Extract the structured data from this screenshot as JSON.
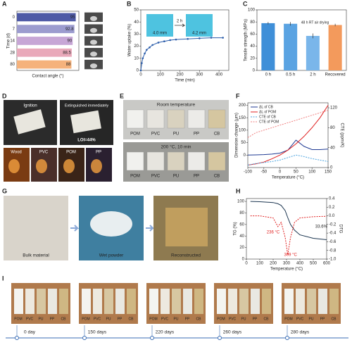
{
  "panels": [
    "A",
    "B",
    "C",
    "D",
    "E",
    "F",
    "G",
    "H",
    "I"
  ],
  "chart_data": [
    {
      "type": "barh",
      "categories": [
        "0",
        "7",
        "14",
        "28",
        "80"
      ],
      "values": [
        95,
        92.8,
        90,
        88.5,
        88
      ],
      "colors": [
        "#4e5aa6",
        "#9c9ccf",
        "#c7a6d6",
        "#e9a9ba",
        "#f5b27c"
      ],
      "xlim": [
        0,
        100
      ],
      "xlabel": "Contact angle (°)",
      "ylabel": "Time (d)"
    },
    {
      "type": "line",
      "x": [
        0,
        5,
        10,
        20,
        30,
        45,
        60,
        90,
        120,
        150,
        180,
        240,
        300,
        360,
        420
      ],
      "series": [
        {
          "color": "#2a5caa",
          "markers": true,
          "values": [
            0,
            6,
            10,
            14,
            17,
            19,
            21,
            23,
            24,
            25,
            25.5,
            26,
            26.5,
            27,
            27
          ]
        }
      ],
      "xlim": [
        0,
        450
      ],
      "xticks": [
        0,
        100,
        200,
        300,
        400
      ],
      "ylim": [
        0,
        50
      ],
      "yticks": [
        0,
        10,
        20,
        30,
        40,
        50
      ],
      "xlabel": "Time (min)",
      "ylabel": "Water uptake (%)",
      "annotations": [
        "4.0 mm",
        "2 h",
        "4.2 mm"
      ]
    },
    {
      "type": "bar",
      "categories": [
        "0 h",
        "0.5 h",
        "2 h",
        "Recovered"
      ],
      "values": [
        78,
        77,
        57,
        75
      ],
      "errors": [
        2,
        3,
        4,
        2
      ],
      "colors": [
        "#3f8fd8",
        "#5aa3e2",
        "#7ab6ea",
        "#f39a5c"
      ],
      "ylim": [
        0,
        100
      ],
      "yticks": [
        0,
        20,
        40,
        60,
        80,
        100
      ],
      "ylabel": "Tensile strength (MPa)",
      "annotations": [
        "48 h RT air drying"
      ]
    },
    {
      "type": "line",
      "x": [
        -100,
        -75,
        -50,
        -25,
        0,
        25,
        50,
        75,
        100,
        125,
        150
      ],
      "series": [
        {
          "name": "ΔL of CB",
          "color": "#1f3a93",
          "values": [
            0,
            1,
            2,
            4,
            8,
            20,
            60,
            35,
            22,
            22,
            24
          ]
        },
        {
          "name": "ΔL of POM",
          "color": "#e02020",
          "values": [
            -40,
            -35,
            -28,
            -15,
            0,
            20,
            45,
            75,
            110,
            150,
            200
          ]
        },
        {
          "name": "CTE of CB",
          "color": "#4aa3df",
          "dashed": true,
          "axis": "y2",
          "values": [
            5,
            8,
            10,
            12,
            15,
            20,
            25,
            22,
            18,
            15,
            12
          ]
        },
        {
          "name": "CTE of POM",
          "color": "#f08080",
          "dashed": true,
          "axis": "y2",
          "values": [
            60,
            70,
            75,
            80,
            85,
            90,
            95,
            100,
            105,
            110,
            115
          ]
        }
      ],
      "xlim": [
        -100,
        150
      ],
      "xticks": [
        -100,
        -50,
        0,
        50,
        100,
        150
      ],
      "ylim": [
        -50,
        210
      ],
      "yticks": [
        0,
        50,
        100,
        150,
        200
      ],
      "y2lim": [
        0,
        130
      ],
      "y2ticks": [
        0,
        40,
        80,
        120
      ],
      "xlabel": "Temperature (°C)",
      "ylabel": "Dimension change (μm)",
      "y2label": "CTE (ppm/K)",
      "legend": "upper left"
    },
    {
      "type": "line",
      "x": [
        30,
        100,
        200,
        236,
        260,
        290,
        309,
        330,
        360,
        400,
        500,
        600
      ],
      "series": [
        {
          "color": "#1b3550",
          "values": [
            100,
            99.5,
            98,
            96,
            93,
            84,
            72,
            60,
            50,
            42,
            36,
            33.6
          ]
        },
        {
          "color": "#e02020",
          "dashed": true,
          "axis": "y2",
          "values": [
            0,
            0,
            -0.05,
            -0.25,
            -0.15,
            -0.5,
            -0.9,
            -0.5,
            -0.15,
            -0.05,
            -0.02,
            -0.01
          ]
        }
      ],
      "xlim": [
        0,
        600
      ],
      "xticks": [
        0,
        100,
        200,
        300,
        400,
        500,
        600
      ],
      "ylim": [
        0,
        105
      ],
      "yticks": [
        0,
        20,
        40,
        60,
        80,
        100
      ],
      "y2lim": [
        -1.0,
        0.4
      ],
      "y2ticks": [
        {
          "value": -1.0,
          "label": "-1.0"
        },
        {
          "value": -0.8,
          "label": "-0.8"
        },
        {
          "value": -0.6,
          "label": "-0.6"
        },
        {
          "value": -0.4,
          "label": "-0.4"
        },
        {
          "value": -0.2,
          "label": "-0.2"
        },
        {
          "value": 0,
          "label": "0.0"
        },
        0.2,
        0.4
      ],
      "xlabel": "Temperature (°C)",
      "ylabel": "TG (%)",
      "y2label": "DTG",
      "annotations": [
        "236 °C",
        "309 °C",
        "33.6%"
      ]
    }
  ],
  "photos": {
    "D": {
      "top": [
        "Ignition",
        "Extinguished immediately"
      ],
      "loi": "LOI=44%",
      "bottom": [
        "Wood",
        "PVC",
        "POM",
        "PP"
      ]
    },
    "E": {
      "rows": [
        "Room temperature",
        "200 °C, 10 min"
      ],
      "samples": [
        "POM",
        "PVC",
        "PU",
        "PP",
        "CB"
      ]
    },
    "G": {
      "steps": [
        "Bulk material",
        "Wet powder",
        "Reconstructed"
      ]
    },
    "I": {
      "days": [
        "0 day",
        "150 days",
        "220 days",
        "260 days",
        "280 days"
      ],
      "samples": [
        "POM",
        "PVC",
        "PU",
        "PP",
        "CB"
      ]
    }
  }
}
